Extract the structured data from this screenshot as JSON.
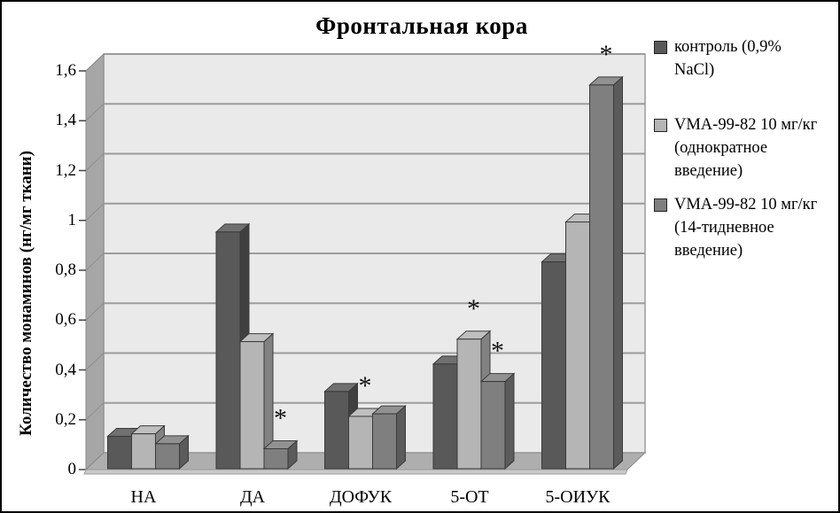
{
  "title": "Фронтальная кора",
  "y_axis_label": "Количество монаминов (нг/мг ткани)",
  "chart_data": {
    "type": "bar",
    "style": "3d-column",
    "title": "Фронтальная кора",
    "ylabel": "Количество монаминов (нг/мг ткани)",
    "xlabel": "",
    "ylim": [
      0,
      1.6
    ],
    "ytick_step": 0.2,
    "ytick_labels": [
      "0",
      "0,2",
      "0,4",
      "0,6",
      "0,8",
      "1",
      "1,2",
      "1,4",
      "1,6"
    ],
    "grid": true,
    "legend_position": "right",
    "categories": [
      "НА",
      "ДА",
      "ДОФУК",
      "5-ОТ",
      "5-ОИУК"
    ],
    "series": [
      {
        "name": "контроль (0,9% NaCl)",
        "color": "#595959",
        "values": [
          0.13,
          0.95,
          0.31,
          0.42,
          0.83
        ]
      },
      {
        "name": "VMA-99-82 10 мг/кг (однократное введение)",
        "color": "#b5b5b5",
        "values": [
          0.14,
          0.51,
          0.21,
          0.52,
          0.99
        ]
      },
      {
        "name": "VMA-99-82 10 мг/кг (14-тидневное введение)",
        "color": "#7f7f7f",
        "values": [
          0.1,
          0.08,
          0.22,
          0.35,
          1.54
        ]
      }
    ],
    "significance_marks": [
      {
        "category": "ДА",
        "series_index": 2,
        "symbol": "*"
      },
      {
        "category": "ДОФУК",
        "series_index": 1,
        "symbol": "*"
      },
      {
        "category": "5-ОТ",
        "series_index": 1,
        "symbol": "*"
      },
      {
        "category": "5-ОТ",
        "series_index": 2,
        "symbol": "*"
      },
      {
        "category": "5-ОИУК",
        "series_index": 2,
        "symbol": "*"
      }
    ],
    "wall_color": "#eaeaea",
    "gridline_color": "#9c9c9c",
    "floor_color": "#aeaeae",
    "side_wall_color": "#a6a6a6"
  },
  "legend": {
    "items": [
      {
        "label": "контроль (0,9% NaCl)",
        "lines": [
          "контроль (0,9%",
          "NaCl)"
        ],
        "color": "#595959"
      },
      {
        "label": "VMA-99-82 10 мг/кг (однократное введение)",
        "lines": [
          "VMA-99-82 10 мг/кг",
          "(однократное",
          "введение)"
        ],
        "color": "#b5b5b5"
      },
      {
        "label": "VMA-99-82 10 мг/кг (14-тидневное введение)",
        "lines": [
          "VMA-99-82 10 мг/кг",
          "(14-тидневное",
          "введение)"
        ],
        "color": "#7f7f7f"
      }
    ]
  }
}
